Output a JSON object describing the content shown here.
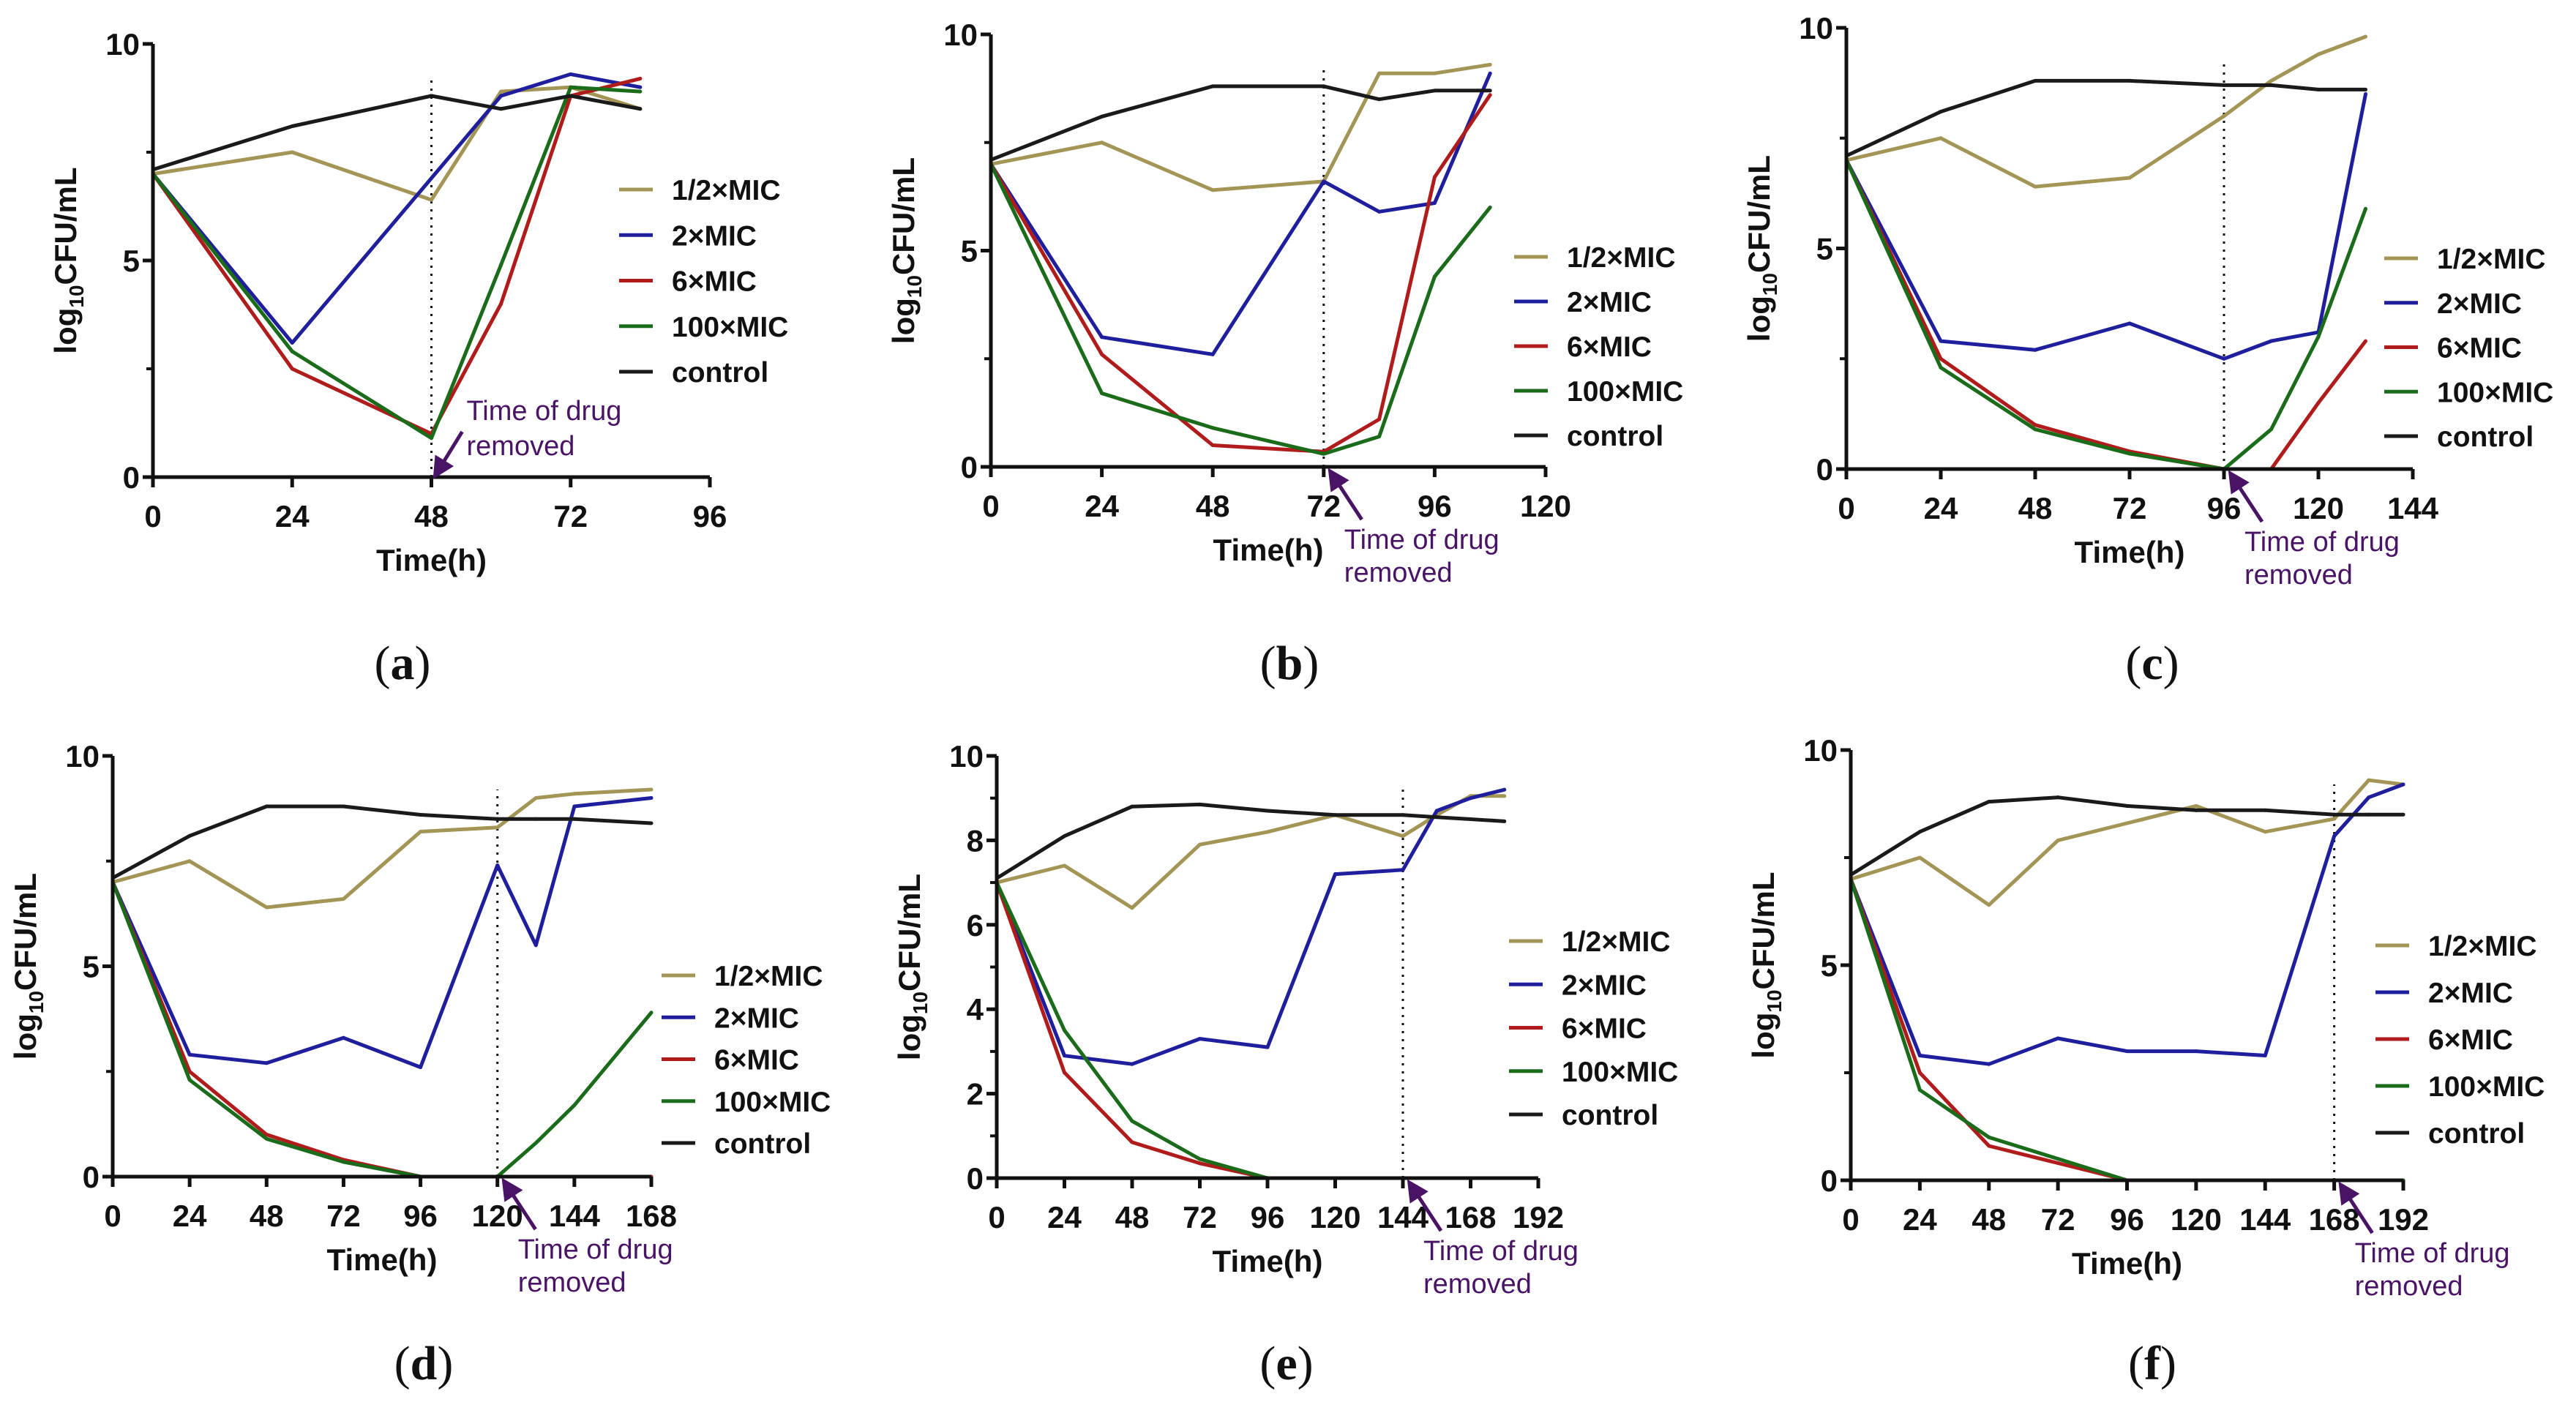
{
  "colors": {
    "half_mic": "#a39555",
    "two_mic": "#1f1f9e",
    "six_mic": "#b01c1c",
    "hundred_mic": "#1a6b1a",
    "control": "#1a1a1a",
    "annotation": "#4a1466"
  },
  "chart_data": [
    {
      "panel_label": "a",
      "type": "line",
      "xlabel": "Time(h)",
      "ylabel": {
        "base": "log",
        "sub": "10",
        "rest": "CFU/mL"
      },
      "xlim": [
        0,
        96
      ],
      "ylim": [
        0,
        10
      ],
      "xticks": [
        "0",
        "24",
        "48",
        "72",
        "96"
      ],
      "yticks": [
        "0",
        "5",
        "10"
      ],
      "drug_removed_time": 48,
      "annotation": [
        "Time of drug",
        "removed"
      ],
      "x": [
        0,
        24,
        48,
        60,
        72,
        84
      ],
      "series": [
        {
          "name": "1/2×MIC",
          "color_key": "half_mic",
          "values": [
            7.0,
            7.5,
            6.4,
            8.9,
            9.0,
            8.5
          ]
        },
        {
          "name": "2×MIC",
          "color_key": "two_mic",
          "values": [
            7.0,
            3.1,
            6.9,
            8.8,
            9.3,
            9.0
          ]
        },
        {
          "name": "6×MIC",
          "color_key": "six_mic",
          "values": [
            7.0,
            2.5,
            1.0,
            4.0,
            8.8,
            9.2
          ]
        },
        {
          "name": "100×MIC",
          "color_key": "hundred_mic",
          "values": [
            7.0,
            2.9,
            0.9,
            4.9,
            9.0,
            8.9
          ]
        },
        {
          "name": "control",
          "color_key": "control",
          "values": [
            7.1,
            8.1,
            8.8,
            8.5,
            8.8,
            8.5
          ]
        }
      ]
    },
    {
      "panel_label": "b",
      "type": "line",
      "xlabel": "Time(h)",
      "ylabel": {
        "base": "log",
        "sub": "10",
        "rest": "CFU/mL"
      },
      "xlim": [
        0,
        120
      ],
      "ylim": [
        0,
        10
      ],
      "xticks": [
        "0",
        "24",
        "48",
        "72",
        "96",
        "120"
      ],
      "yticks": [
        "0",
        "5",
        "10"
      ],
      "drug_removed_time": 72,
      "annotation": [
        "Time of drug",
        "removed"
      ],
      "x": [
        0,
        24,
        48,
        72,
        84,
        96,
        108
      ],
      "series": [
        {
          "name": "1/2×MIC",
          "color_key": "half_mic",
          "values": [
            7.0,
            7.5,
            6.4,
            6.6,
            9.1,
            9.1,
            9.3
          ]
        },
        {
          "name": "2×MIC",
          "color_key": "two_mic",
          "values": [
            7.0,
            3.0,
            2.6,
            6.6,
            5.9,
            6.1,
            9.1
          ]
        },
        {
          "name": "6×MIC",
          "color_key": "six_mic",
          "values": [
            7.0,
            2.6,
            0.5,
            0.35,
            1.1,
            6.7,
            8.6
          ]
        },
        {
          "name": "100×MIC",
          "color_key": "hundred_mic",
          "values": [
            7.0,
            1.7,
            0.9,
            0.3,
            0.7,
            4.4,
            6.0
          ]
        },
        {
          "name": "control",
          "color_key": "control",
          "values": [
            7.1,
            8.1,
            8.8,
            8.8,
            8.5,
            8.7,
            8.7
          ]
        }
      ]
    },
    {
      "panel_label": "c",
      "type": "line",
      "xlabel": "Time(h)",
      "ylabel": {
        "base": "log",
        "sub": "10",
        "rest": "CFU/mL"
      },
      "xlim": [
        0,
        144
      ],
      "ylim": [
        0,
        10
      ],
      "xticks": [
        "0",
        "24",
        "48",
        "72",
        "96",
        "120",
        "144"
      ],
      "yticks": [
        "0",
        "5",
        "10"
      ],
      "drug_removed_time": 96,
      "annotation": [
        "Time of drug",
        "removed"
      ],
      "x": [
        0,
        24,
        48,
        72,
        96,
        108,
        120,
        132
      ],
      "series": [
        {
          "name": "1/2×MIC",
          "color_key": "half_mic",
          "values": [
            7.0,
            7.5,
            6.4,
            6.6,
            8.0,
            8.8,
            9.4,
            9.8
          ]
        },
        {
          "name": "2×MIC",
          "color_key": "two_mic",
          "values": [
            7.0,
            2.9,
            2.7,
            3.3,
            2.5,
            2.9,
            3.1,
            8.5
          ]
        },
        {
          "name": "6×MIC",
          "color_key": "six_mic",
          "values": [
            7.0,
            2.5,
            1.0,
            0.4,
            0,
            0,
            1.5,
            2.9
          ]
        },
        {
          "name": "100×MIC",
          "color_key": "hundred_mic",
          "values": [
            7.0,
            2.3,
            0.9,
            0.35,
            0,
            0.9,
            3.0,
            5.9
          ]
        },
        {
          "name": "control",
          "color_key": "control",
          "values": [
            7.1,
            8.1,
            8.8,
            8.8,
            8.7,
            8.7,
            8.6,
            8.6
          ]
        }
      ]
    },
    {
      "panel_label": "d",
      "type": "line",
      "xlabel": "Time(h)",
      "ylabel": {
        "base": "log",
        "sub": "10",
        "rest": "CFU/mL"
      },
      "xlim": [
        0,
        168
      ],
      "ylim": [
        0,
        10
      ],
      "xticks": [
        "0",
        "24",
        "48",
        "72",
        "96",
        "120",
        "144",
        "168"
      ],
      "yticks": [
        "0",
        "5",
        "10"
      ],
      "drug_removed_time": 120,
      "annotation": [
        "Time of drug",
        "removed"
      ],
      "x": [
        0,
        24,
        48,
        72,
        96,
        120,
        132,
        144,
        168
      ],
      "series": [
        {
          "name": "1/2×MIC",
          "color_key": "half_mic",
          "values": [
            7.0,
            7.5,
            6.4,
            6.6,
            8.2,
            8.3,
            9.0,
            9.1,
            9.2
          ]
        },
        {
          "name": "2×MIC",
          "color_key": "two_mic",
          "values": [
            7.0,
            2.9,
            2.7,
            3.3,
            2.6,
            7.4,
            5.5,
            8.8,
            9.0
          ]
        },
        {
          "name": "6×MIC",
          "color_key": "six_mic",
          "values": [
            7.0,
            2.5,
            1.0,
            0.4,
            0,
            0,
            0,
            0,
            0
          ]
        },
        {
          "name": "100×MIC",
          "color_key": "hundred_mic",
          "values": [
            7.0,
            2.3,
            0.9,
            0.35,
            0,
            0,
            0.8,
            1.7,
            3.9
          ]
        },
        {
          "name": "control",
          "color_key": "control",
          "values": [
            7.1,
            8.1,
            8.8,
            8.8,
            8.6,
            8.5,
            8.5,
            8.5,
            8.4
          ]
        }
      ]
    },
    {
      "panel_label": "e",
      "type": "line",
      "xlabel": "Time(h)",
      "ylabel": {
        "base": "log",
        "sub": "10",
        "rest": "CFU/mL"
      },
      "xlim": [
        0,
        192
      ],
      "ylim": [
        0,
        10
      ],
      "xticks": [
        "0",
        "24",
        "48",
        "72",
        "96",
        "120",
        "144",
        "168",
        "192"
      ],
      "yticks": [
        "0",
        "2",
        "4",
        "6",
        "8",
        "10"
      ],
      "drug_removed_time": 144,
      "annotation": [
        "Time of drug",
        "removed"
      ],
      "x": [
        0,
        24,
        48,
        72,
        96,
        120,
        144,
        156,
        168,
        180
      ],
      "series": [
        {
          "name": "1/2×MIC",
          "color_key": "half_mic",
          "values": [
            7.0,
            7.4,
            6.4,
            7.9,
            8.2,
            8.6,
            8.1,
            8.6,
            9.05,
            9.05
          ]
        },
        {
          "name": "2×MIC",
          "color_key": "two_mic",
          "values": [
            7.0,
            2.9,
            2.7,
            3.3,
            3.1,
            7.2,
            7.3,
            8.7,
            9.0,
            9.2
          ]
        },
        {
          "name": "6×MIC",
          "color_key": "six_mic",
          "values": [
            7.0,
            2.5,
            0.85,
            0.35,
            0,
            0,
            0,
            0,
            0,
            0
          ]
        },
        {
          "name": "100×MIC",
          "color_key": "hundred_mic",
          "values": [
            7.0,
            3.5,
            1.35,
            0.45,
            0,
            0,
            0,
            0,
            0,
            0
          ]
        },
        {
          "name": "control",
          "color_key": "control",
          "values": [
            7.1,
            8.1,
            8.8,
            8.85,
            8.7,
            8.6,
            8.6,
            8.55,
            8.5,
            8.45
          ]
        }
      ]
    },
    {
      "panel_label": "f",
      "type": "line",
      "xlabel": "Time(h)",
      "ylabel": {
        "base": "log",
        "sub": "10",
        "rest": "CFU/mL"
      },
      "xlim": [
        0,
        192
      ],
      "ylim": [
        0,
        10
      ],
      "xticks": [
        "0",
        "24",
        "48",
        "72",
        "96",
        "120",
        "144",
        "168",
        "192"
      ],
      "yticks": [
        "0",
        "5",
        "10"
      ],
      "drug_removed_time": 168,
      "annotation": [
        "Time of drug",
        "removed"
      ],
      "x": [
        0,
        24,
        48,
        72,
        96,
        120,
        144,
        168,
        180,
        192
      ],
      "series": [
        {
          "name": "1/2×MIC",
          "color_key": "half_mic",
          "values": [
            7.0,
            7.5,
            6.4,
            7.9,
            8.3,
            8.7,
            8.1,
            8.4,
            9.3,
            9.2
          ]
        },
        {
          "name": "2×MIC",
          "color_key": "two_mic",
          "values": [
            7.0,
            2.9,
            2.7,
            3.3,
            3.0,
            3.0,
            2.9,
            8.0,
            8.9,
            9.2
          ]
        },
        {
          "name": "6×MIC",
          "color_key": "six_mic",
          "values": [
            7.0,
            2.5,
            0.8,
            0.4,
            0,
            0,
            0,
            0,
            0,
            0
          ]
        },
        {
          "name": "100×MIC",
          "color_key": "hundred_mic",
          "values": [
            7.0,
            2.1,
            1.0,
            0.5,
            0,
            0,
            0,
            0,
            0,
            0
          ]
        },
        {
          "name": "control",
          "color_key": "control",
          "values": [
            7.1,
            8.1,
            8.8,
            8.9,
            8.7,
            8.6,
            8.6,
            8.5,
            8.5,
            8.5
          ]
        }
      ]
    }
  ]
}
